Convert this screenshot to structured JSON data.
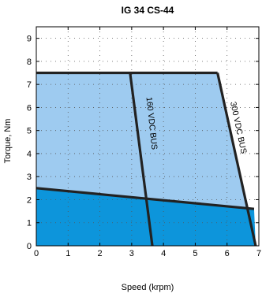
{
  "chart_data": {
    "type": "area",
    "title": "IG 34 CS-44",
    "xlabel": "Speed (krpm)",
    "ylabel": "Torque, Nm",
    "xlim": [
      0,
      7
    ],
    "ylim": [
      0,
      9.5
    ],
    "xticks": [
      0,
      1,
      2,
      3,
      4,
      5,
      6,
      7
    ],
    "yticks": [
      0,
      1,
      2,
      3,
      4,
      5,
      6,
      7,
      8,
      9
    ],
    "grid": "dotted",
    "colors": {
      "intermittent": "#9ecbf0",
      "continuous": "#0d95db",
      "boundary": "#222222"
    },
    "regions": [
      {
        "id": "intermittent",
        "polygon": [
          [
            0,
            7.5
          ],
          [
            5.7,
            7.5
          ],
          [
            6.9,
            0
          ],
          [
            0,
            0
          ]
        ]
      },
      {
        "id": "continuous",
        "polygon": [
          [
            0,
            2.5
          ],
          [
            6.85,
            1.6
          ],
          [
            6.9,
            0
          ],
          [
            0,
            0
          ]
        ]
      }
    ],
    "lines": [
      {
        "id": "peak-torque-limit",
        "points": [
          [
            0,
            7.5
          ],
          [
            5.7,
            7.5
          ]
        ]
      },
      {
        "id": "continuous-limit",
        "points": [
          [
            0,
            2.5
          ],
          [
            6.85,
            1.6
          ]
        ]
      },
      {
        "id": "bus-160",
        "points": [
          [
            2.95,
            7.5
          ],
          [
            3.65,
            0
          ]
        ]
      },
      {
        "id": "bus-300",
        "points": [
          [
            5.7,
            7.5
          ],
          [
            6.9,
            0
          ]
        ]
      }
    ],
    "annotations": [
      {
        "id": "bus-160-label",
        "text": "160 VDC BUS",
        "x": 3.55,
        "y": 5.3,
        "angle": 84
      },
      {
        "id": "bus-300-label",
        "text": "300 VDC BUS",
        "x": 6.28,
        "y": 5.1,
        "angle": 78
      }
    ]
  }
}
